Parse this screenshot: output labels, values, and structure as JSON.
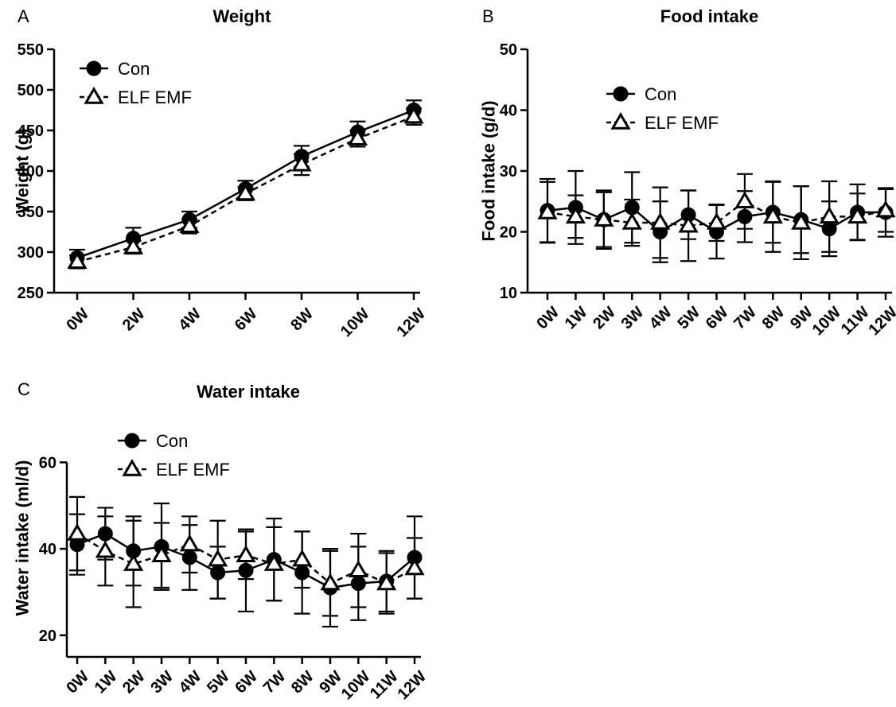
{
  "chart_data": [
    {
      "panel": "A",
      "type": "line",
      "title": "Weight",
      "xlabel": "",
      "ylabel": "Weight (g)",
      "categories": [
        "0W",
        "2W",
        "4W",
        "6W",
        "8W",
        "10W",
        "12W"
      ],
      "ylim": [
        250,
        550
      ],
      "yticks": [
        250,
        300,
        350,
        400,
        450,
        500,
        550
      ],
      "legend_position": "top-left",
      "grid": false,
      "series": [
        {
          "name": "Con",
          "marker": "filled-circle",
          "line_style": "solid",
          "values": [
            293,
            317,
            340,
            378,
            418,
            448,
            475
          ],
          "errors": [
            10,
            13,
            10,
            10,
            13,
            13,
            12
          ]
        },
        {
          "name": "ELF EMF",
          "marker": "open-triangle",
          "line_style": "dashed",
          "values": [
            288,
            306,
            332,
            372,
            408,
            440,
            467
          ],
          "errors": [
            8,
            8,
            9,
            8,
            13,
            10,
            10
          ]
        }
      ]
    },
    {
      "panel": "B",
      "type": "line",
      "title": "Food intake",
      "xlabel": "",
      "ylabel": "Food intake (g/d)",
      "categories": [
        "0W",
        "1W",
        "2W",
        "3W",
        "4W",
        "5W",
        "6W",
        "7W",
        "8W",
        "9W",
        "10W",
        "11W",
        "12W"
      ],
      "ylim": [
        10,
        50
      ],
      "yticks": [
        10,
        20,
        30,
        40,
        50
      ],
      "legend_position": "top-center",
      "grid": false,
      "series": [
        {
          "name": "Con",
          "marker": "filled-circle",
          "line_style": "solid",
          "values": [
            23.5,
            24,
            22,
            24,
            20,
            22.8,
            20,
            22.5,
            23.2,
            22,
            20.5,
            23.2,
            23.2
          ],
          "errors": [
            5.2,
            6,
            4.8,
            5.8,
            5,
            4,
            4.4,
            4.2,
            5,
            5.5,
            4.5,
            4.6,
            4
          ]
        },
        {
          "name": "ELF EMF",
          "marker": "open-triangle",
          "line_style": "dashed",
          "values": [
            23.2,
            22.5,
            22,
            21.5,
            21.5,
            21,
            21.5,
            25,
            22.5,
            21.5,
            22.5,
            22.5,
            23.5
          ],
          "errors": [
            5,
            3.5,
            4.5,
            3.8,
            5.8,
            5.8,
            3,
            4.5,
            5.8,
            6,
            5.8,
            3.8,
            3.5
          ]
        }
      ]
    },
    {
      "panel": "C",
      "type": "line",
      "title": "Water intake",
      "xlabel": "",
      "ylabel": "Water intake (ml/d)",
      "categories": [
        "0W",
        "1W",
        "2W",
        "3W",
        "4W",
        "5W",
        "6W",
        "7W",
        "8W",
        "9W",
        "10W",
        "11W",
        "12W"
      ],
      "ylim": [
        15,
        70
      ],
      "yticks": [
        20,
        40,
        60
      ],
      "legend_position": "top-left",
      "grid": false,
      "series": [
        {
          "name": "Con",
          "marker": "filled-circle",
          "line_style": "solid",
          "values": [
            41,
            43.5,
            39.5,
            40.5,
            38,
            34.5,
            35,
            37.5,
            34.5,
            31,
            32,
            32.5,
            38
          ],
          "errors": [
            7,
            6,
            8,
            10,
            7.5,
            6,
            9.5,
            9.5,
            9.5,
            9,
            8.5,
            7,
            9.5
          ]
        },
        {
          "name": "ELF EMF",
          "marker": "open-triangle",
          "line_style": "dashed",
          "values": [
            43.5,
            39.5,
            36.5,
            38.5,
            41,
            37.5,
            38.5,
            36.5,
            37.5,
            32,
            35,
            32,
            35.5
          ],
          "errors": [
            8.5,
            8,
            10,
            7.5,
            6.5,
            9,
            5.5,
            8.5,
            6.5,
            7.5,
            8.5,
            7,
            7
          ]
        }
      ]
    }
  ]
}
